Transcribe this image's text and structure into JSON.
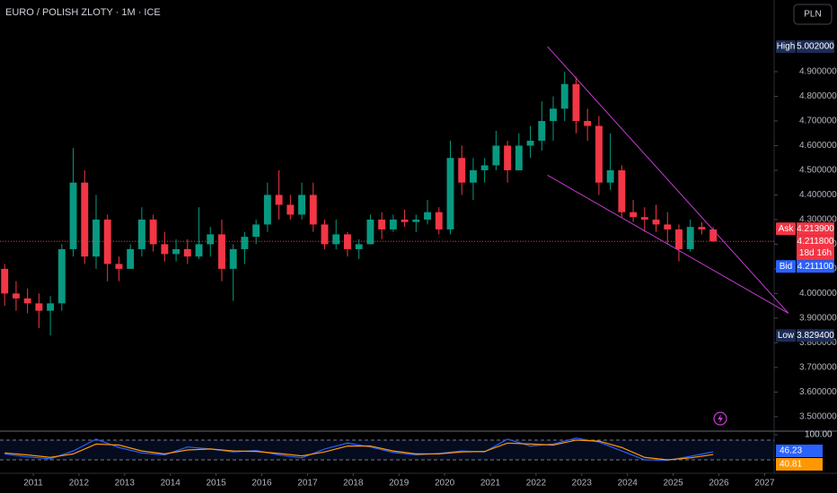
{
  "header": {
    "title": "EURO / POLISH ZLOTY · 1M · ICE",
    "currency": "PLN"
  },
  "chart_data": [
    {
      "type": "candlestick",
      "x": [
        2010.375,
        2010.625,
        2010.875,
        2011.125,
        2011.375,
        2011.625,
        2011.875,
        2012.125,
        2012.375,
        2012.625,
        2012.875,
        2013.125,
        2013.375,
        2013.625,
        2013.875,
        2014.125,
        2014.375,
        2014.625,
        2014.875,
        2015.125,
        2015.375,
        2015.625,
        2015.875,
        2016.125,
        2016.375,
        2016.625,
        2016.875,
        2017.125,
        2017.375,
        2017.625,
        2017.875,
        2018.125,
        2018.375,
        2018.625,
        2018.875,
        2019.125,
        2019.375,
        2019.625,
        2019.875,
        2020.125,
        2020.375,
        2020.625,
        2020.875,
        2021.125,
        2021.375,
        2021.625,
        2021.875,
        2022.125,
        2022.375,
        2022.625,
        2022.875,
        2023.125,
        2023.375,
        2023.625,
        2023.875,
        2024.125,
        2024.375,
        2024.625,
        2024.875,
        2025.125,
        2025.375,
        2025.625,
        2025.875
      ],
      "open": [
        4.1,
        4.0,
        3.98,
        3.96,
        3.93,
        3.96,
        4.18,
        4.45,
        4.15,
        4.3,
        4.12,
        4.1,
        4.18,
        4.3,
        4.2,
        4.16,
        4.18,
        4.15,
        4.2,
        4.24,
        4.1,
        4.18,
        4.23,
        4.28,
        4.4,
        4.36,
        4.32,
        4.4,
        4.28,
        4.2,
        4.24,
        4.18,
        4.2,
        4.3,
        4.26,
        4.3,
        4.29,
        4.3,
        4.33,
        4.26,
        4.55,
        4.45,
        4.5,
        4.52,
        4.6,
        4.5,
        4.6,
        4.62,
        4.7,
        4.75,
        4.85,
        4.7,
        4.68,
        4.45,
        4.5,
        4.33,
        4.31,
        4.3,
        4.28,
        4.26,
        4.18,
        4.27,
        4.26
      ],
      "high": [
        4.12,
        4.05,
        4.02,
        4.0,
        3.99,
        4.2,
        4.59,
        4.5,
        4.4,
        4.32,
        4.15,
        4.2,
        4.35,
        4.32,
        4.25,
        4.22,
        4.22,
        4.35,
        4.27,
        4.3,
        4.2,
        4.25,
        4.3,
        4.45,
        4.5,
        4.4,
        4.45,
        4.45,
        4.3,
        4.3,
        4.25,
        4.22,
        4.32,
        4.33,
        4.32,
        4.34,
        4.32,
        4.38,
        4.35,
        4.62,
        4.6,
        4.55,
        4.55,
        4.66,
        4.62,
        4.65,
        4.68,
        4.78,
        4.8,
        4.9,
        4.88,
        4.75,
        4.72,
        4.65,
        4.52,
        4.38,
        4.35,
        4.36,
        4.33,
        4.28,
        4.3,
        4.29,
        4.27
      ],
      "low": [
        3.95,
        3.93,
        3.92,
        3.86,
        3.8294,
        3.93,
        4.15,
        4.12,
        4.1,
        4.05,
        4.05,
        4.1,
        4.15,
        4.17,
        4.13,
        4.13,
        4.12,
        4.14,
        4.15,
        4.05,
        3.97,
        4.12,
        4.2,
        4.25,
        4.3,
        4.3,
        4.3,
        4.25,
        4.18,
        4.18,
        4.15,
        4.14,
        4.2,
        4.22,
        4.25,
        4.27,
        4.25,
        4.28,
        4.24,
        4.24,
        4.4,
        4.38,
        4.45,
        4.5,
        4.45,
        4.5,
        4.55,
        4.58,
        4.62,
        4.7,
        4.65,
        4.62,
        4.4,
        4.42,
        4.31,
        4.29,
        4.25,
        4.25,
        4.2,
        4.13,
        4.17,
        4.24,
        4.21
      ],
      "close": [
        4.0,
        3.98,
        3.96,
        3.93,
        3.96,
        4.18,
        4.45,
        4.15,
        4.3,
        4.12,
        4.1,
        4.18,
        4.3,
        4.2,
        4.16,
        4.18,
        4.15,
        4.2,
        4.24,
        4.1,
        4.18,
        4.23,
        4.28,
        4.4,
        4.36,
        4.32,
        4.4,
        4.28,
        4.2,
        4.24,
        4.18,
        4.2,
        4.3,
        4.26,
        4.3,
        4.29,
        4.3,
        4.33,
        4.26,
        4.55,
        4.45,
        4.5,
        4.52,
        4.6,
        4.5,
        4.6,
        4.62,
        4.7,
        4.75,
        4.85,
        4.7,
        4.68,
        4.45,
        4.5,
        4.33,
        4.31,
        4.3,
        4.28,
        4.26,
        4.18,
        4.27,
        4.26,
        4.2118
      ],
      "up_color": "#089981",
      "down_color": "#f23645",
      "xlim": [
        2010.273,
        2027.208
      ],
      "ylim": [
        3.445,
        5.191
      ],
      "yticks": [
        {
          "value": 3.5,
          "label": "3.500000"
        },
        {
          "value": 3.6,
          "label": "3.600000"
        },
        {
          "value": 3.7,
          "label": "3.700000"
        },
        {
          "value": 3.8,
          "label": "3.800000"
        },
        {
          "value": 3.9,
          "label": "3.900000"
        },
        {
          "value": 4.0,
          "label": "4.000000"
        },
        {
          "value": 4.1,
          "label": "4.100000"
        },
        {
          "value": 4.2,
          "label": "4.200000"
        },
        {
          "value": 4.3,
          "label": "4.300000"
        },
        {
          "value": 4.4,
          "label": "4.400000"
        },
        {
          "value": 4.5,
          "label": "4.500000"
        },
        {
          "value": 4.6,
          "label": "4.600000"
        },
        {
          "value": 4.7,
          "label": "4.700000"
        },
        {
          "value": 4.8,
          "label": "4.800000"
        },
        {
          "value": 4.9,
          "label": "4.900000"
        }
      ],
      "trendlines": {
        "color": "#c53bd1",
        "lines": [
          {
            "x": [
              2022.25,
              2027.52
            ],
            "y": [
              5.002,
              3.92
            ]
          },
          {
            "x": [
              2022.25,
              2027.52
            ],
            "y": [
              4.48,
              3.92
            ]
          }
        ]
      },
      "last_price": {
        "value": 4.2118,
        "label": "4.211800",
        "countdown": "18d 16h",
        "color": "#f23645"
      },
      "price_tags": [
        {
          "name": "High",
          "value": 5.002,
          "label": "5.002000",
          "color": "#1c2c55"
        },
        {
          "name": "Ask",
          "value": 4.2139,
          "label": "4.213900",
          "color": "#f23645"
        },
        {
          "name": "Bid",
          "value": 4.2111,
          "label": "4.211100",
          "color": "#2962ff"
        },
        {
          "name": "Low",
          "value": 3.8294,
          "label": "3.829400",
          "color": "#1c2c55"
        }
      ]
    },
    {
      "type": "line",
      "x": [
        2010.375,
        2010.875,
        2011.375,
        2011.875,
        2012.375,
        2012.875,
        2013.375,
        2013.875,
        2014.375,
        2014.875,
        2015.375,
        2015.875,
        2016.375,
        2016.875,
        2017.375,
        2017.875,
        2018.375,
        2018.875,
        2019.375,
        2019.875,
        2020.375,
        2020.875,
        2021.375,
        2021.875,
        2022.375,
        2022.875,
        2023.375,
        2023.875,
        2024.375,
        2024.875,
        2025.375,
        2025.875
      ],
      "xlim": [
        2010.273,
        2027.208
      ],
      "xticks": [
        2011,
        2012,
        2013,
        2014,
        2015,
        2016,
        2017,
        2018,
        2019,
        2020,
        2021,
        2022,
        2023,
        2024,
        2025,
        2026,
        2027
      ],
      "ylim": [
        0,
        100
      ],
      "bands": [
        30,
        70
      ],
      "top": {
        "value": 100,
        "label": "100.00"
      },
      "series": [
        {
          "color": "#2962ff",
          "values": [
            42,
            36,
            32,
            48,
            72,
            55,
            44,
            40,
            56,
            52,
            46,
            49,
            40,
            34,
            52,
            64,
            56,
            45,
            40,
            43,
            48,
            46,
            72,
            58,
            62,
            74,
            66,
            48,
            30,
            29,
            37,
            46.23
          ]
        },
        {
          "color": "#ff9800",
          "values": [
            44,
            40,
            35,
            42,
            62,
            60,
            48,
            42,
            50,
            52,
            48,
            47,
            43,
            38,
            46,
            58,
            58,
            48,
            42,
            42,
            46,
            47,
            64,
            62,
            60,
            70,
            68,
            55,
            35,
            30,
            34,
            40.81
          ]
        }
      ]
    }
  ]
}
